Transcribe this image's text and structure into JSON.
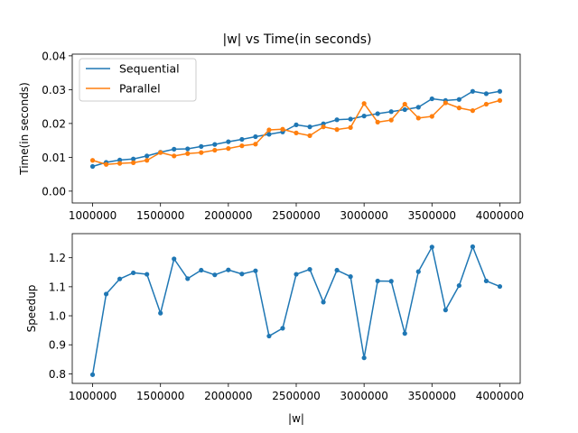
{
  "chart_data": [
    {
      "type": "line",
      "title": "|w| vs Time(in seconds)",
      "xlabel": "",
      "ylabel": "Time(in seconds)",
      "xlim": [
        850000,
        4150000
      ],
      "ylim": [
        -0.0035,
        0.0405
      ],
      "xticks": [
        1000000,
        1500000,
        2000000,
        2500000,
        3000000,
        3500000,
        4000000
      ],
      "yticks": [
        0.0,
        0.01,
        0.02,
        0.03,
        0.04
      ],
      "ytick_labels": [
        "0.00",
        "0.01",
        "0.02",
        "0.03",
        "0.04"
      ],
      "legend": "top-left",
      "x": [
        1000000,
        1100000,
        1200000,
        1300000,
        1400000,
        1500000,
        1600000,
        1700000,
        1800000,
        1900000,
        2000000,
        2100000,
        2200000,
        2300000,
        2400000,
        2500000,
        2600000,
        2700000,
        2800000,
        2900000,
        3000000,
        3100000,
        3200000,
        3300000,
        3400000,
        3500000,
        3600000,
        3700000,
        3800000,
        3900000,
        4000000
      ],
      "series": [
        {
          "name": "Sequential",
          "color": "#1f77b4",
          "values": [
            0.0073,
            0.0085,
            0.0092,
            0.0095,
            0.0104,
            0.0115,
            0.0124,
            0.0125,
            0.0132,
            0.0138,
            0.0146,
            0.0153,
            0.0161,
            0.0168,
            0.0175,
            0.0196,
            0.019,
            0.0199,
            0.0211,
            0.0213,
            0.0222,
            0.0229,
            0.0235,
            0.0241,
            0.0248,
            0.0273,
            0.0268,
            0.0271,
            0.0295,
            0.0288,
            0.0295
          ]
        },
        {
          "name": "Parallel",
          "color": "#ff7f0e",
          "values": [
            0.0091,
            0.0079,
            0.0082,
            0.0084,
            0.0091,
            0.0114,
            0.0104,
            0.0111,
            0.0114,
            0.0121,
            0.0126,
            0.0134,
            0.0139,
            0.0181,
            0.0183,
            0.0172,
            0.0164,
            0.019,
            0.0182,
            0.0188,
            0.0259,
            0.0204,
            0.021,
            0.0257,
            0.0216,
            0.0221,
            0.0261,
            0.0246,
            0.0238,
            0.0257,
            0.0268
          ]
        }
      ]
    },
    {
      "type": "line",
      "title": "",
      "xlabel": "|w|",
      "ylabel": "Speedup",
      "xlim": [
        850000,
        4150000
      ],
      "ylim": [
        0.767,
        1.283
      ],
      "xticks": [
        1000000,
        1500000,
        2000000,
        2500000,
        3000000,
        3500000,
        4000000
      ],
      "yticks": [
        0.8,
        0.9,
        1.0,
        1.1,
        1.2
      ],
      "ytick_labels": [
        "0.8",
        "0.9",
        "1.0",
        "1.1",
        "1.2"
      ],
      "x": [
        1000000,
        1100000,
        1200000,
        1300000,
        1400000,
        1500000,
        1600000,
        1700000,
        1800000,
        1900000,
        2000000,
        2100000,
        2200000,
        2300000,
        2400000,
        2500000,
        2600000,
        2700000,
        2800000,
        2900000,
        3000000,
        3100000,
        3200000,
        3300000,
        3400000,
        3500000,
        3600000,
        3700000,
        3800000,
        3900000,
        4000000
      ],
      "series": [
        {
          "color": "#1f77b4",
          "values": [
            0.797,
            1.075,
            1.127,
            1.148,
            1.143,
            1.009,
            1.196,
            1.128,
            1.157,
            1.141,
            1.158,
            1.144,
            1.155,
            0.93,
            0.957,
            1.143,
            1.16,
            1.047,
            1.157,
            1.135,
            0.855,
            1.12,
            1.119,
            0.939,
            1.152,
            1.237,
            1.02,
            1.104,
            1.238,
            1.12,
            1.101
          ]
        }
      ]
    }
  ]
}
